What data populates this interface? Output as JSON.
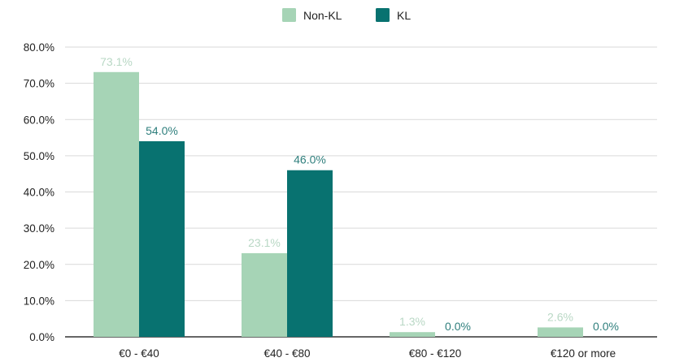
{
  "chart_data": {
    "type": "bar",
    "title": "",
    "xlabel": "",
    "ylabel": "",
    "categories": [
      "€0 - €40",
      "€40 - €80",
      "€80 - €120",
      "€120 or more"
    ],
    "series": [
      {
        "name": "Non-KL",
        "color": "#a6d4b6",
        "values": [
          73.1,
          23.1,
          1.3,
          2.6
        ],
        "labels": [
          "73.1%",
          "23.1%",
          "1.3%",
          "2.6%"
        ]
      },
      {
        "name": "KL",
        "color": "#087270",
        "values": [
          54.0,
          46.0,
          0.0,
          0.0
        ],
        "labels": [
          "54.0%",
          "46.0%",
          "0.0%",
          "0.0%"
        ]
      }
    ],
    "ylim": [
      0,
      80
    ],
    "yticks": [
      0,
      10,
      20,
      30,
      40,
      50,
      60,
      70,
      80
    ],
    "ytick_labels": [
      "0.0%",
      "10.0%",
      "20.0%",
      "30.0%",
      "40.0%",
      "50.0%",
      "60.0%",
      "70.0%",
      "80.0%"
    ],
    "grid": true,
    "legend_position": "top-center",
    "colors": {
      "grid": "#d9d9d9",
      "axis": "#333333",
      "non_kl_label": "#b9d8c5",
      "kl_label": "#2f7f7d"
    }
  }
}
